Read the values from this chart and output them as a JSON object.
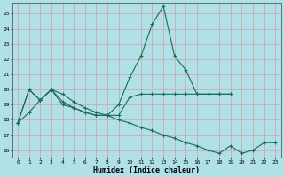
{
  "xlabel": "Humidex (Indice chaleur)",
  "xlim": [
    -0.5,
    23.5
  ],
  "ylim": [
    15.5,
    25.7
  ],
  "yticks": [
    16,
    17,
    18,
    19,
    20,
    21,
    22,
    23,
    24,
    25
  ],
  "xticks": [
    0,
    1,
    2,
    3,
    4,
    5,
    6,
    7,
    8,
    9,
    10,
    11,
    12,
    13,
    14,
    15,
    16,
    17,
    18,
    19,
    20,
    21,
    22,
    23
  ],
  "bg_color": "#b0e0e8",
  "line_color": "#1a6b5a",
  "grid_color": "#d8a0a0",
  "lines": [
    {
      "x": [
        0,
        1,
        2,
        3,
        4,
        5,
        6,
        7,
        8,
        9,
        10,
        11,
        12,
        13,
        14,
        15,
        16,
        17,
        18,
        19
      ],
      "y": [
        17.8,
        20.0,
        19.3,
        20.0,
        19.0,
        18.8,
        18.5,
        18.3,
        18.3,
        19.0,
        20.8,
        22.2,
        24.3,
        25.5,
        22.2,
        21.3,
        19.7,
        19.7,
        19.7,
        19.7
      ]
    },
    {
      "x": [
        0,
        1,
        2,
        3,
        4,
        5,
        6,
        7,
        8,
        9,
        10,
        11,
        12,
        13,
        14,
        15,
        16,
        17,
        18,
        19
      ],
      "y": [
        17.8,
        20.0,
        19.3,
        20.0,
        19.2,
        18.8,
        18.5,
        18.3,
        18.3,
        18.3,
        19.5,
        19.7,
        19.7,
        19.7,
        19.7,
        19.7,
        19.7,
        19.7,
        19.7,
        19.7
      ]
    },
    {
      "x": [
        0,
        1,
        2,
        3,
        4,
        5,
        6,
        7,
        8,
        9,
        10,
        11,
        12,
        13,
        14,
        15,
        16,
        17,
        18,
        19,
        20,
        21,
        22,
        23
      ],
      "y": [
        17.8,
        18.5,
        19.3,
        20.0,
        19.7,
        19.2,
        18.8,
        18.5,
        18.3,
        18.0,
        17.8,
        17.5,
        17.3,
        17.0,
        16.8,
        16.5,
        16.3,
        16.0,
        15.8,
        16.3,
        15.8,
        16.0,
        16.5,
        16.5
      ]
    }
  ]
}
